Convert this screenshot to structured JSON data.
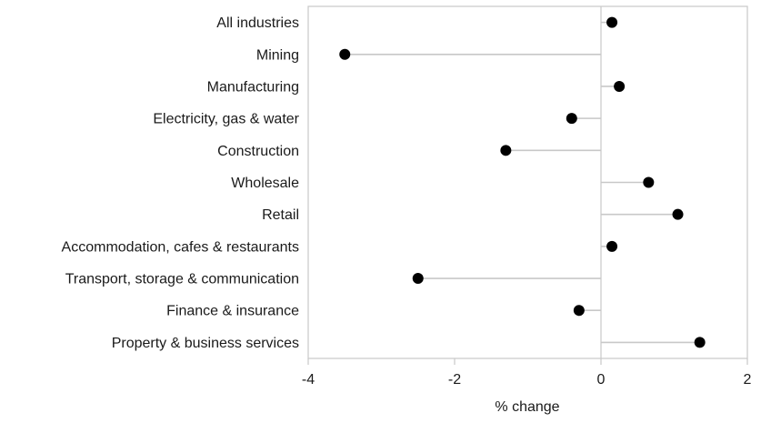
{
  "chart_data": {
    "type": "scatter",
    "orientation": "horizontal-lollipop",
    "title": "",
    "xlabel": "% change",
    "ylabel": "",
    "xlim": [
      -4,
      2
    ],
    "xticks": [
      -4,
      -2,
      0,
      2
    ],
    "grid": false,
    "legend": "none",
    "colors": {
      "point": "#000000",
      "stem": "#c8c8c8",
      "frame": "#c8c8c8"
    },
    "categories": [
      "All industries",
      "Mining",
      "Manufacturing",
      "Electricity, gas & water",
      "Construction",
      "Wholesale",
      "Retail",
      "Accommodation, cafes & restaurants",
      "Transport, storage & communication",
      "Finance & insurance",
      "Property & business services"
    ],
    "values": [
      0.15,
      -3.5,
      0.25,
      -0.4,
      -1.3,
      0.65,
      1.05,
      0.15,
      -2.5,
      -0.3,
      1.35
    ]
  }
}
